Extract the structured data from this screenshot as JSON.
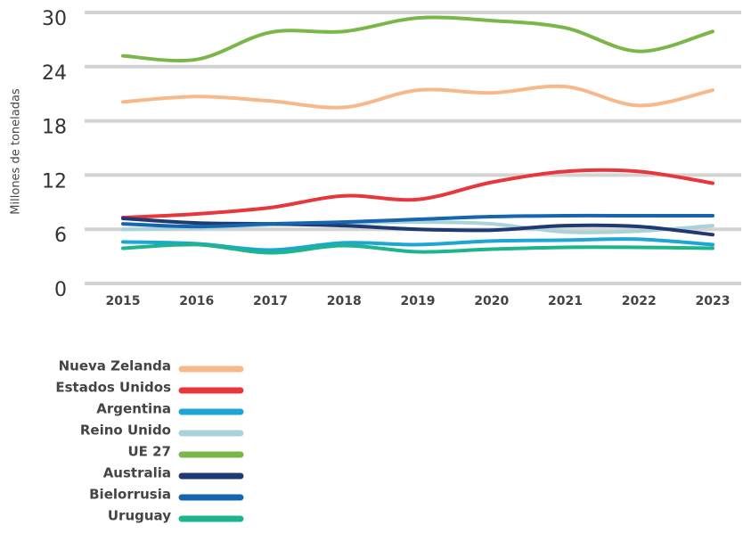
{
  "chart_data": {
    "type": "line",
    "y_label": "Millones de toneladas",
    "categories": [
      "2015",
      "2016",
      "2017",
      "2018",
      "2019",
      "2020",
      "2021",
      "2022",
      "2023"
    ],
    "series": [
      {
        "name": "Nueva Zelanda",
        "color": "#f7b88a",
        "values": [
          20.1,
          20.7,
          20.2,
          19.5,
          21.4,
          21.1,
          21.8,
          19.7,
          21.4
        ]
      },
      {
        "name": "Estados Unidos",
        "color": "#e8373c",
        "values": [
          7.3,
          7.7,
          8.4,
          9.7,
          9.3,
          11.2,
          12.4,
          12.4,
          11.1
        ]
      },
      {
        "name": "Argentina",
        "color": "#1ba6d6",
        "values": [
          4.6,
          4.4,
          3.7,
          4.5,
          4.3,
          4.7,
          4.8,
          4.9,
          4.3
        ]
      },
      {
        "name": "Reino Unido",
        "color": "#a8d3d8",
        "values": [
          6.0,
          6.1,
          6.5,
          6.7,
          6.8,
          6.6,
          5.7,
          5.8,
          6.4
        ]
      },
      {
        "name": "UE 27",
        "color": "#7ab648",
        "values": [
          25.2,
          24.8,
          27.8,
          27.9,
          29.4,
          29.1,
          28.3,
          25.7,
          27.9
        ]
      },
      {
        "name": "Australia",
        "color": "#1f3a73",
        "values": [
          7.2,
          6.7,
          6.6,
          6.4,
          6.0,
          5.9,
          6.4,
          6.3,
          5.4
        ]
      },
      {
        "name": "Bielorrusia",
        "color": "#1565b0",
        "values": [
          6.6,
          6.3,
          6.6,
          6.8,
          7.1,
          7.4,
          7.5,
          7.5,
          7.5
        ]
      },
      {
        "name": "Uruguay",
        "color": "#1eb48c",
        "values": [
          3.9,
          4.3,
          3.4,
          4.2,
          3.5,
          3.8,
          4.0,
          4.0,
          3.9
        ]
      }
    ],
    "ylim": [
      0,
      30
    ],
    "yticks": [
      0,
      6,
      12,
      18,
      24,
      30
    ],
    "grid": true,
    "legend": "bottom-left"
  }
}
